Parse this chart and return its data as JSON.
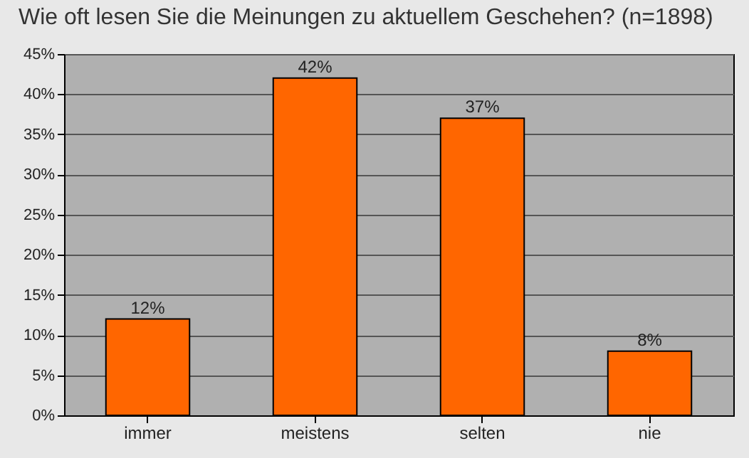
{
  "chart_data": {
    "type": "bar",
    "title": "Wie oft lesen Sie die Meinungen zu aktuellem Geschehen? (n=1898)",
    "categories": [
      "immer",
      "meistens",
      "selten",
      "nie"
    ],
    "values": [
      12,
      42,
      37,
      8
    ],
    "value_labels": [
      "12%",
      "42%",
      "37%",
      "8%"
    ],
    "color": "#ff6600",
    "ylim": [
      0,
      45
    ],
    "yticks": [
      {
        "value": 0,
        "label": "0%"
      },
      {
        "value": 5,
        "label": "5%"
      },
      {
        "value": 10,
        "label": "10%"
      },
      {
        "value": 15,
        "label": "15%"
      },
      {
        "value": 20,
        "label": "20%"
      },
      {
        "value": 25,
        "label": "25%"
      },
      {
        "value": 30,
        "label": "30%"
      },
      {
        "value": 35,
        "label": "35%"
      },
      {
        "value": 40,
        "label": "40%"
      },
      {
        "value": 45,
        "label": "45%"
      }
    ],
    "grid": true
  }
}
